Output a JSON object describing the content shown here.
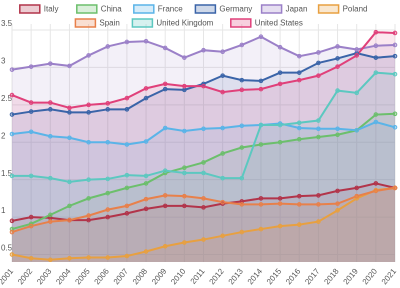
{
  "chart_data": {
    "type": "line",
    "categories": [
      "2001",
      "2002",
      "2003",
      "2004",
      "2005",
      "2006",
      "2007",
      "2008",
      "2009",
      "2010",
      "2011",
      "2012",
      "2013",
      "2014",
      "2015",
      "2016",
      "2017",
      "2018",
      "2019",
      "2020",
      "2021"
    ],
    "ylim": [
      0.4,
      3.58
    ],
    "yticks": [
      0.5,
      1,
      1.5,
      2,
      2.5,
      3,
      3.5
    ],
    "grid": true,
    "legend": "top",
    "fill": true,
    "series": [
      {
        "name": "Italy",
        "color": "#b2344a",
        "values": [
          0.95,
          1.0,
          0.99,
          0.96,
          0.96,
          1.0,
          1.05,
          1.11,
          1.15,
          1.15,
          1.13,
          1.18,
          1.21,
          1.25,
          1.25,
          1.28,
          1.29,
          1.35,
          1.39,
          1.45,
          1.39
        ]
      },
      {
        "name": "China",
        "color": "#6cbf6c",
        "values": [
          0.84,
          0.91,
          1.03,
          1.15,
          1.25,
          1.32,
          1.39,
          1.45,
          1.59,
          1.66,
          1.73,
          1.85,
          1.93,
          1.97,
          2.0,
          2.04,
          2.07,
          2.1,
          2.16,
          2.37,
          2.38
        ]
      },
      {
        "name": "France",
        "color": "#5ab4e8",
        "values": [
          2.11,
          2.14,
          2.08,
          2.06,
          2.0,
          2.0,
          1.97,
          2.01,
          2.19,
          2.15,
          2.18,
          2.19,
          2.22,
          2.23,
          2.25,
          2.19,
          2.18,
          2.18,
          2.16,
          2.27,
          2.2
        ]
      },
      {
        "name": "Germany",
        "color": "#3a64a8",
        "values": [
          2.37,
          2.41,
          2.44,
          2.4,
          2.4,
          2.44,
          2.44,
          2.59,
          2.71,
          2.7,
          2.78,
          2.89,
          2.83,
          2.82,
          2.93,
          2.93,
          3.06,
          3.12,
          3.19,
          3.13,
          3.15
        ]
      },
      {
        "name": "Japan",
        "color": "#9b80c8",
        "values": [
          2.97,
          3.01,
          3.05,
          3.02,
          3.16,
          3.28,
          3.34,
          3.35,
          3.26,
          3.13,
          3.23,
          3.21,
          3.3,
          3.41,
          3.27,
          3.15,
          3.2,
          3.28,
          3.24,
          3.29,
          3.3
        ]
      },
      {
        "name": "Poland",
        "color": "#e8a040",
        "values": [
          0.5,
          0.45,
          0.43,
          0.45,
          0.46,
          0.46,
          0.48,
          0.54,
          0.61,
          0.66,
          0.7,
          0.75,
          0.8,
          0.84,
          0.88,
          0.9,
          0.94,
          1.09,
          1.25,
          1.36,
          1.39
        ]
      },
      {
        "name": "Spain",
        "color": "#e8804a",
        "values": [
          0.8,
          0.88,
          0.94,
          0.96,
          1.02,
          1.1,
          1.15,
          1.24,
          1.29,
          1.28,
          1.25,
          1.2,
          1.17,
          1.17,
          1.18,
          1.17,
          1.17,
          1.18,
          1.28,
          1.35,
          1.39
        ]
      },
      {
        "name": "United Kingdom",
        "color": "#5cc8c0",
        "values": [
          1.55,
          1.55,
          1.52,
          1.47,
          1.5,
          1.51,
          1.56,
          1.55,
          1.62,
          1.59,
          1.59,
          1.52,
          1.52,
          2.23,
          2.23,
          2.26,
          2.29,
          2.69,
          2.66,
          2.93,
          2.91
        ]
      },
      {
        "name": "United States",
        "color": "#e0407a",
        "values": [
          2.63,
          2.53,
          2.53,
          2.46,
          2.5,
          2.52,
          2.59,
          2.72,
          2.78,
          2.75,
          2.75,
          2.67,
          2.7,
          2.71,
          2.78,
          2.83,
          2.89,
          3.01,
          3.16,
          3.47,
          3.46
        ]
      }
    ]
  }
}
